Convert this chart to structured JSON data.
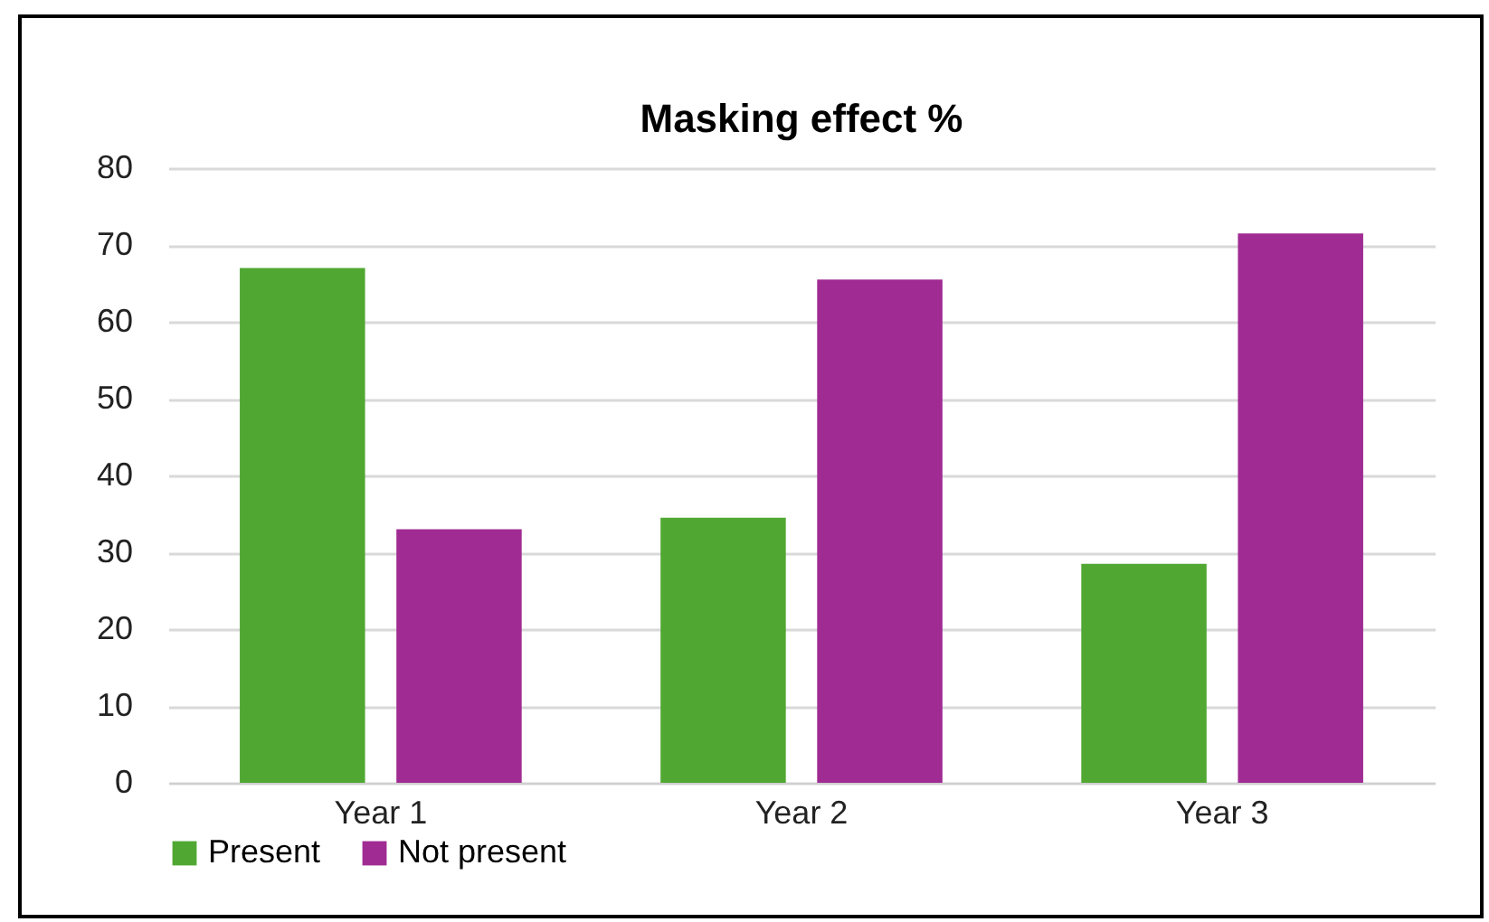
{
  "chart_data": {
    "type": "bar",
    "title": "Masking effect %",
    "categories": [
      "Year 1",
      "Year 2",
      "Year 3"
    ],
    "series": [
      {
        "name": "Present",
        "color": "#50a832",
        "values": [
          67,
          34.5,
          28.5
        ]
      },
      {
        "name": "Not present",
        "color": "#a02b93",
        "values": [
          33,
          65.5,
          71.5
        ]
      }
    ],
    "ylim": [
      0,
      80
    ],
    "yticks": [
      0,
      10,
      20,
      30,
      40,
      50,
      60,
      70,
      80
    ],
    "grid": "y",
    "legend": "bottom"
  }
}
